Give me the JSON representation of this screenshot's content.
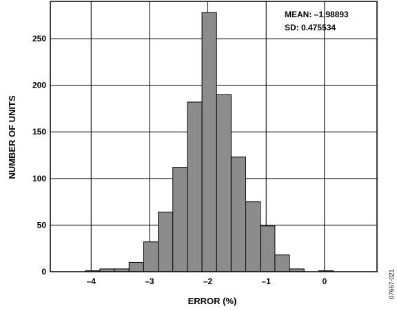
{
  "chart_data": {
    "type": "bar",
    "title": "",
    "xlabel": "ERROR (%)",
    "ylabel": "NUMBER OF UNITS",
    "xlim": [
      -4.7,
      0.9
    ],
    "ylim": [
      0,
      290
    ],
    "x_ticks": [
      -4,
      -3,
      -2,
      -1,
      0
    ],
    "x_tick_labels": [
      "–4",
      "–3",
      "–2",
      "–1",
      "0"
    ],
    "y_ticks": [
      0,
      50,
      100,
      150,
      200,
      250
    ],
    "y_tick_labels": [
      "0",
      "50",
      "100",
      "150",
      "200",
      "250"
    ],
    "grid": true,
    "bin_width": 0.25,
    "bins": [
      {
        "start": -4.1,
        "count": 1
      },
      {
        "start": -3.85,
        "count": 3
      },
      {
        "start": -3.6,
        "count": 3
      },
      {
        "start": -3.35,
        "count": 10
      },
      {
        "start": -3.1,
        "count": 32
      },
      {
        "start": -2.85,
        "count": 64
      },
      {
        "start": -2.6,
        "count": 112
      },
      {
        "start": -2.35,
        "count": 182
      },
      {
        "start": -2.1,
        "count": 278
      },
      {
        "start": -1.85,
        "count": 190
      },
      {
        "start": -1.6,
        "count": 123
      },
      {
        "start": -1.35,
        "count": 75
      },
      {
        "start": -1.1,
        "count": 49
      },
      {
        "start": -0.85,
        "count": 18
      },
      {
        "start": -0.6,
        "count": 3
      },
      {
        "start": -0.35,
        "count": 0
      },
      {
        "start": -0.1,
        "count": 1
      }
    ],
    "bar_color": "#8c8c8c",
    "annotations": [
      "MEAN: –1.98893",
      "SD: 0.475534"
    ],
    "legend_placement": "top-right"
  },
  "figure_id": "07667-021"
}
